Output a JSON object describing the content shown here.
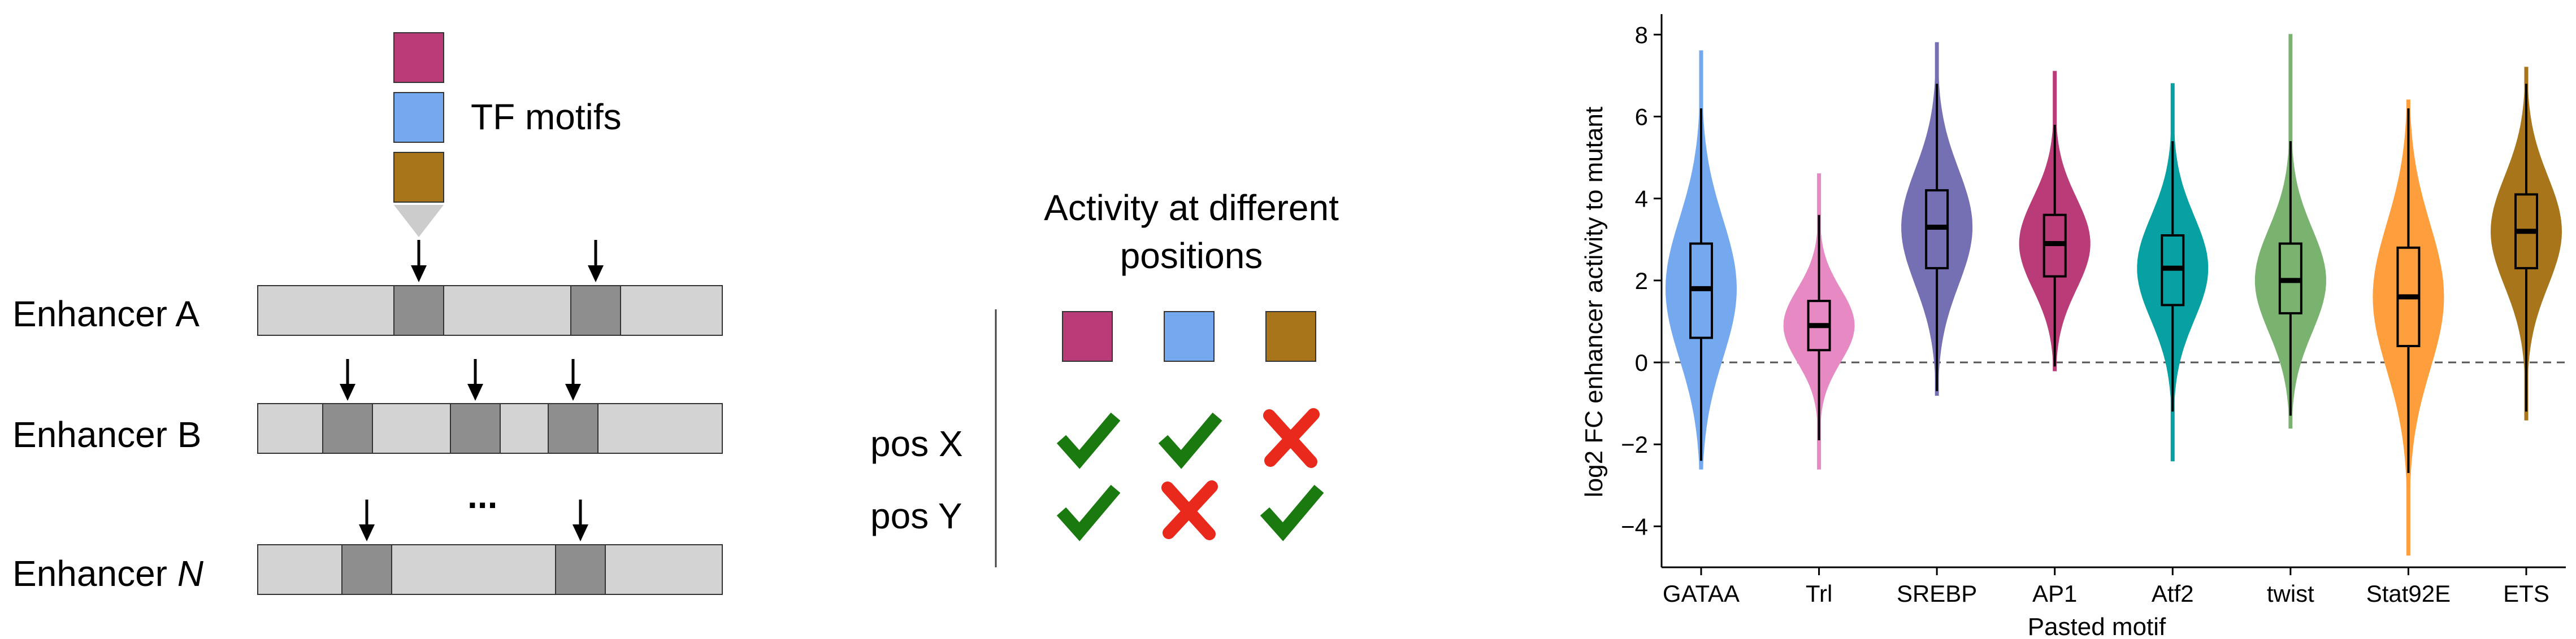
{
  "schematic": {
    "tf_label": "TF motifs",
    "enhancers": [
      {
        "prefix": "Enhancer ",
        "suffix": "A"
      },
      {
        "prefix": "Enhancer ",
        "suffix": "B"
      },
      {
        "prefix": "Enhancer ",
        "suffix": "N"
      }
    ],
    "ellipsis": "...",
    "colors": {
      "magenta": "#B93C78",
      "blue": "#74A9F0",
      "gold": "#A8751B",
      "enhancer_fill": "#D3D3D3",
      "motif_fill": "#8E8E8E",
      "check": "#1A7A10",
      "cross": "#E8291C"
    }
  },
  "activity_table": {
    "title_line1": "Activity at different",
    "title_line2": "positions",
    "rows": [
      {
        "label": "pos X",
        "marks": [
          "check",
          "check",
          "cross"
        ]
      },
      {
        "label": "pos Y",
        "marks": [
          "check",
          "cross",
          "check"
        ]
      }
    ]
  },
  "chart_data": {
    "type": "violin",
    "xlabel": "Pasted motif",
    "ylabel": "log2 FC enhancer activity to mutant",
    "ylim": [
      -5,
      8.5
    ],
    "yticks": [
      -4,
      -2,
      0,
      2,
      4,
      6,
      8
    ],
    "reference_line": 0,
    "categories": [
      "GATAA",
      "Trl",
      "SREBP",
      "AP1",
      "Atf2",
      "twist",
      "Stat92E",
      "ETS"
    ],
    "series": [
      {
        "category": "GATAA",
        "color": "#74A9F0",
        "min": -2.6,
        "max": 7.6,
        "whisker_low": -2.4,
        "q1": 0.6,
        "median": 1.8,
        "q3": 2.9,
        "whisker_high": 6.2
      },
      {
        "category": "Trl",
        "color": "#E78AC3",
        "min": -2.6,
        "max": 4.6,
        "whisker_low": -1.9,
        "q1": 0.3,
        "median": 0.9,
        "q3": 1.5,
        "whisker_high": 3.6
      },
      {
        "category": "SREBP",
        "color": "#7570B3",
        "min": -0.8,
        "max": 7.8,
        "whisker_low": -0.7,
        "q1": 2.3,
        "median": 3.3,
        "q3": 4.2,
        "whisker_high": 6.8
      },
      {
        "category": "AP1",
        "color": "#B93C78",
        "min": -0.2,
        "max": 7.1,
        "whisker_low": -0.1,
        "q1": 2.1,
        "median": 2.9,
        "q3": 3.6,
        "whisker_high": 5.8
      },
      {
        "category": "Atf2",
        "color": "#07A1A3",
        "min": -2.4,
        "max": 6.8,
        "whisker_low": -1.2,
        "q1": 1.4,
        "median": 2.3,
        "q3": 3.1,
        "whisker_high": 5.4
      },
      {
        "category": "twist",
        "color": "#7AB370",
        "min": -1.6,
        "max": 8.0,
        "whisker_low": -1.3,
        "q1": 1.2,
        "median": 2.0,
        "q3": 2.9,
        "whisker_high": 5.4
      },
      {
        "category": "Stat92E",
        "color": "#FF9E3D",
        "min": -4.7,
        "max": 6.4,
        "whisker_low": -2.7,
        "q1": 0.4,
        "median": 1.6,
        "q3": 2.8,
        "whisker_high": 6.2
      },
      {
        "category": "ETS",
        "color": "#A8751B",
        "min": -1.4,
        "max": 7.2,
        "whisker_low": -1.2,
        "q1": 2.3,
        "median": 3.2,
        "q3": 4.1,
        "whisker_high": 6.8
      }
    ]
  }
}
